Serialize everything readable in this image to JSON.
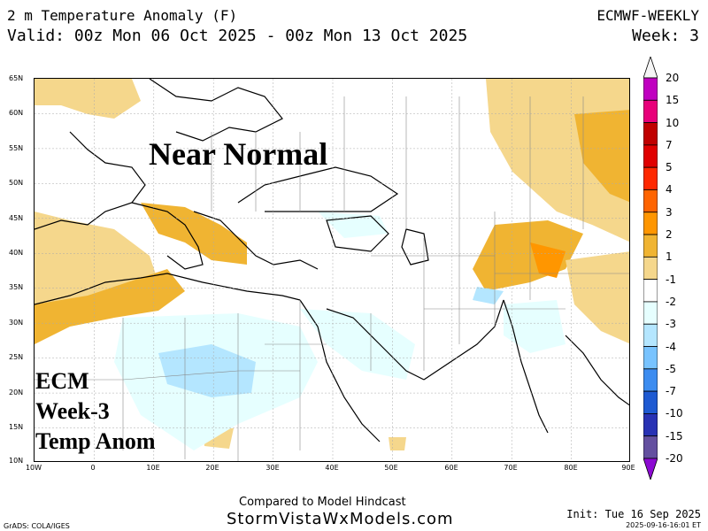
{
  "header": {
    "title": "2 m Temperature Anomaly (F)",
    "valid": "Valid: 00z Mon 06 Oct 2025 - 00z Mon 13 Oct 2025",
    "model": "ECMWF-WEEKLY",
    "week": "Week: 3"
  },
  "map": {
    "lat_labels": [
      "65N",
      "60N",
      "55N",
      "50N",
      "45N",
      "40N",
      "35N",
      "30N",
      "25N",
      "20N",
      "15N",
      "10N"
    ],
    "lon_labels": [
      "10W",
      "0",
      "10E",
      "20E",
      "30E",
      "40E",
      "50E",
      "60E",
      "70E",
      "80E",
      "90E"
    ],
    "overlay": {
      "headline": "Near Normal",
      "annotation_lines": [
        "ECM",
        "Week-3",
        "Temp Anom"
      ]
    }
  },
  "colorbar": {
    "labels": [
      "20",
      "15",
      "10",
      "7",
      "5",
      "4",
      "3",
      "2",
      "1",
      "-1",
      "-2",
      "-3",
      "-4",
      "-5",
      "-7",
      "-10",
      "-15",
      "-20"
    ],
    "colors": [
      "#c000c0",
      "#e8007a",
      "#c00000",
      "#e00000",
      "#ff2800",
      "#ff6400",
      "#ff9600",
      "#f0b432",
      "#f5d78c",
      "#ffffff",
      "#e6ffff",
      "#b4e6ff",
      "#78c3ff",
      "#3c8cf0",
      "#1e5ad2",
      "#2832b4",
      "#6450a0",
      "#8c0ad2"
    ],
    "under_color": "#8c0ad2",
    "over_color": "#f5f5f5"
  },
  "footer": {
    "compared": "Compared to Model Hindcast",
    "site": "StormVistaWxModels.com",
    "grads": "GrADS: COLA/IGES",
    "init": "Init: Tue 16 Sep 2025",
    "stamp": "2025-09-16-16:01 ET"
  }
}
